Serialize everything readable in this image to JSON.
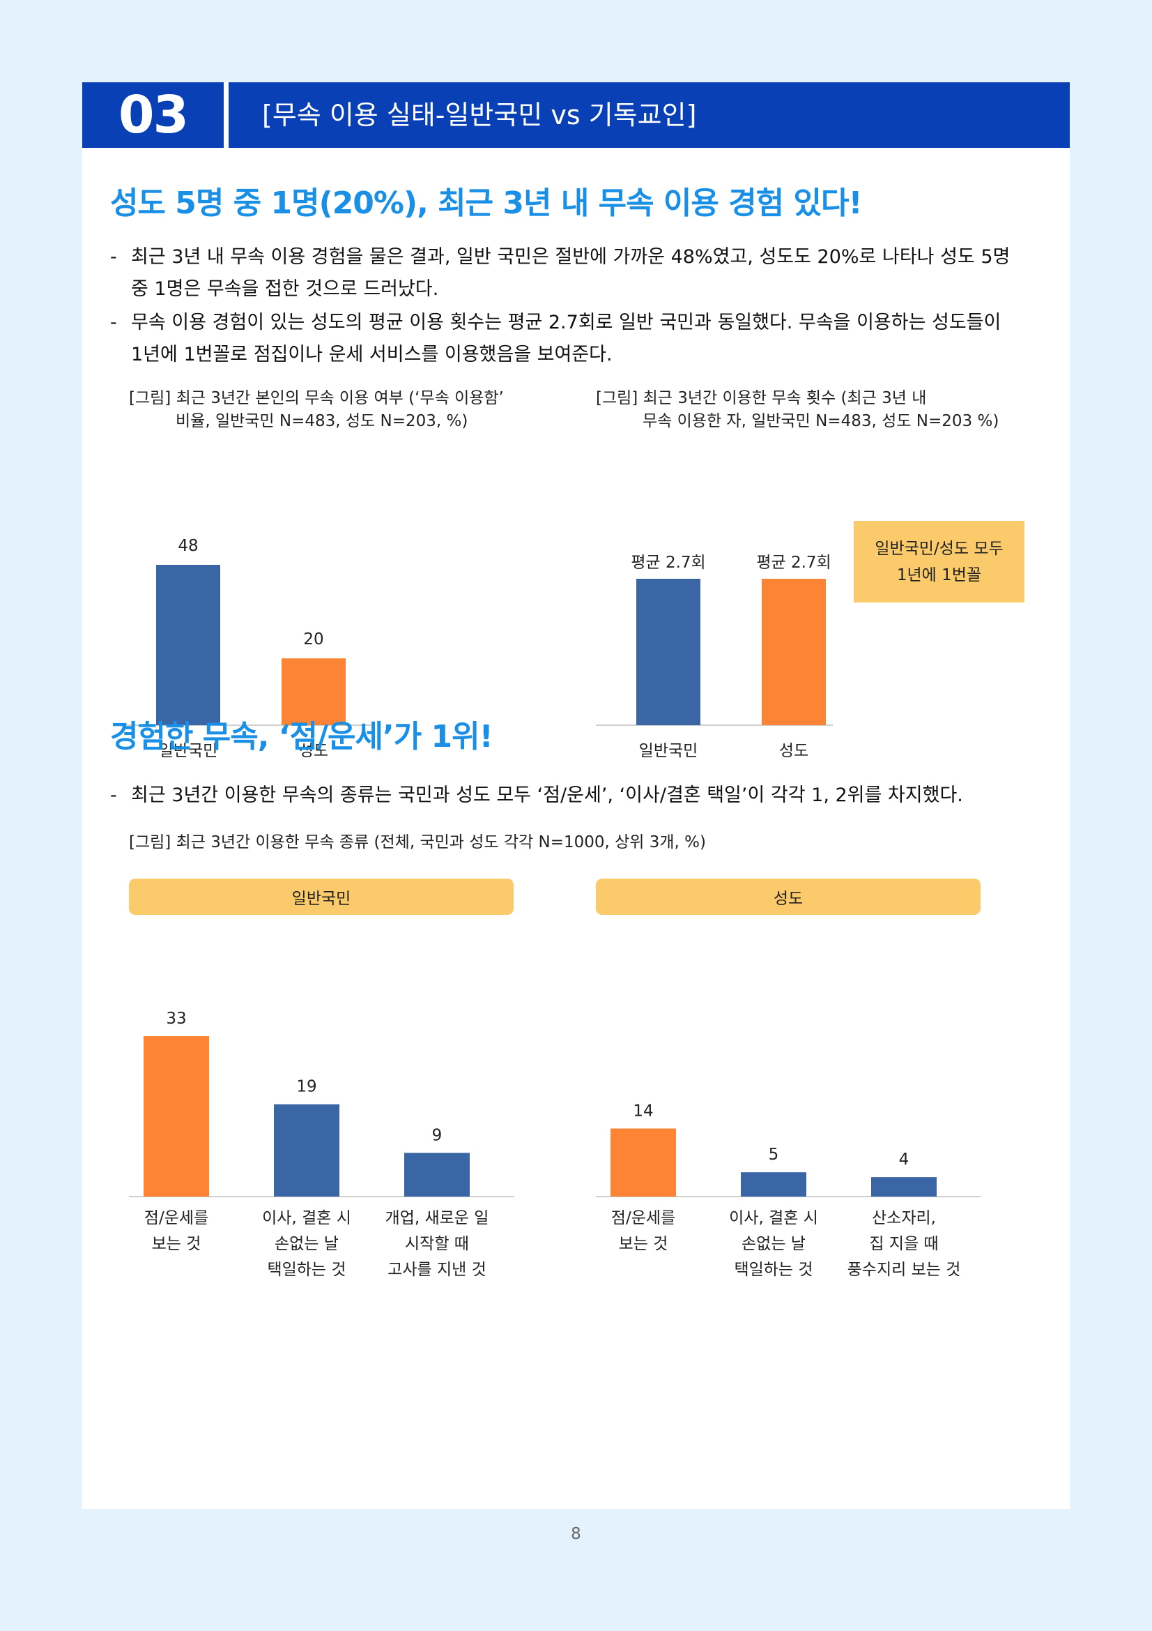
{
  "header": {
    "number": "03",
    "title": "[무속 이용 실태-일반국민 vs 기독교인]"
  },
  "section1": {
    "heading": "성도 5명 중 1명(20%), 최근 3년 내 무속 이용 경험 있다!",
    "bullets": [
      {
        "line1": "최근 3년 내 무속 이용 경험을 물은 결과, 일반 국민은 절반에 가까운 48%였고, 성도도 20%로 나타나 성도 5명",
        "line2": "중 1명은 무속을 접한 것으로 드러났다."
      },
      {
        "line1": "무속 이용 경험이 있는 성도의 평균 이용 횟수는 평균 2.7회로 일반 국민과 동일했다. 무속을 이용하는 성도들이",
        "line2": "1년에 1번꼴로 점집이나 운세 서비스를 이용했음을 보여준다."
      }
    ],
    "caption_left": {
      "line1": "[그림] 최근 3년간 본인의 무속 이용 여부 (‘무속 이용함’",
      "line2": "비율, 일반국민 N=483, 성도 N=203, %)"
    },
    "caption_right": {
      "line1": "[그림] 최근 3년간 이용한 무속 횟수 (최근 3년 내",
      "line2": "무속 이용한 자, 일반국민 N=483, 성도 N=203 %)"
    },
    "note_box": {
      "line1": "일반국민/성도 모두",
      "line2": "1년에 1번꼴"
    }
  },
  "section2": {
    "heading": "경험한 무속, ‘점/운세’가 1위!",
    "bullet": "최근 3년간 이용한 무속의 종류는 국민과 성도 모두 ‘점/운세’, ‘이사/결혼 택일’이 각각 1, 2위를 차지했다.",
    "caption": "[그림] 최근 3년간 이용한 무속 종류 (전체, 국민과 성도 각각 N=1000, 상위 3개, %)",
    "pill_left": "일반국민",
    "pill_right": "성도"
  },
  "footer": {
    "page_number": "8"
  },
  "colors": {
    "blue": "#3a66a5",
    "orange": "#fd8435",
    "accent": "#1a8fe6",
    "header": "#0a40b5",
    "yellow": "#fbcb6b"
  },
  "chart_data": [
    {
      "id": "usage",
      "type": "bar",
      "categories": [
        [
          "일반국민"
        ],
        [
          "성도"
        ]
      ],
      "values": [
        48,
        20
      ],
      "data_labels": [
        "48",
        "20"
      ],
      "colors": [
        "#3a66a5",
        "#fd8435"
      ],
      "ylim": [
        0,
        48
      ]
    },
    {
      "id": "frequency",
      "type": "bar",
      "categories": [
        [
          "일반국민"
        ],
        [
          "성도"
        ]
      ],
      "values": [
        2.7,
        2.7
      ],
      "data_labels": [
        "평균 2.7회",
        "평균 2.7회"
      ],
      "colors": [
        "#3a66a5",
        "#fd8435"
      ],
      "ylim": [
        0,
        2.7
      ]
    },
    {
      "id": "types_general",
      "type": "bar",
      "categories": [
        [
          "점/운세를",
          "보는 것"
        ],
        [
          "이사, 결혼 시",
          "손없는 날",
          "택일하는 것"
        ],
        [
          "개업, 새로운 일",
          "시작할 때",
          "고사를 지낸 것"
        ]
      ],
      "values": [
        33,
        19,
        9
      ],
      "data_labels": [
        "33",
        "19",
        "9"
      ],
      "colors": [
        "#fd8435",
        "#3a66a5",
        "#3a66a5"
      ],
      "ylim": [
        0,
        33
      ]
    },
    {
      "id": "types_believers",
      "type": "bar",
      "categories": [
        [
          "점/운세를",
          "보는 것"
        ],
        [
          "이사, 결혼 시",
          "손없는 날",
          "택일하는 것"
        ],
        [
          "산소자리,",
          "집 지을 때",
          "풍수지리 보는 것"
        ]
      ],
      "values": [
        14,
        5,
        4
      ],
      "data_labels": [
        "14",
        "5",
        "4"
      ],
      "colors": [
        "#fd8435",
        "#3a66a5",
        "#3a66a5"
      ],
      "ylim": [
        0,
        33
      ]
    }
  ]
}
